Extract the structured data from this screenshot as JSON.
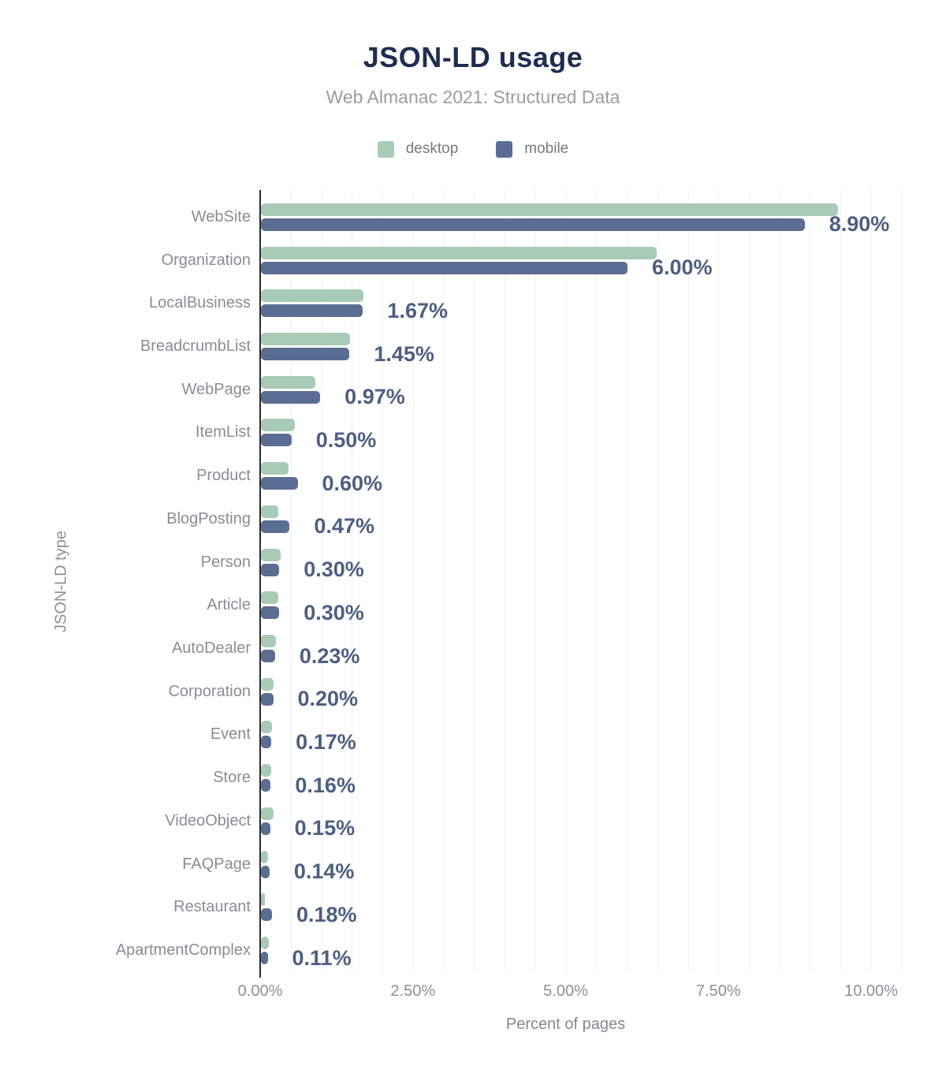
{
  "header": {
    "title": "JSON-LD usage",
    "subtitle": "Web Almanac 2021: Structured Data"
  },
  "legend": [
    {
      "label": "desktop",
      "color": "#a8cbb6"
    },
    {
      "label": "mobile",
      "color": "#5a6d92"
    }
  ],
  "colors": {
    "title": "#1d2e50",
    "subtitle": "#9b9da2",
    "desktop_bar": "#a8cbb6",
    "mobile_bar": "#5a6d92",
    "value_label": "#4d5f81",
    "category_label": "#878d96",
    "axis_line": "#2c2c2c",
    "gridline": "#edf2ee",
    "background": "#ffffff"
  },
  "chart_data": {
    "type": "bar",
    "orientation": "horizontal",
    "title": "JSON-LD usage",
    "subtitle": "Web Almanac 2021: Structured Data",
    "xlabel": "Percent of pages",
    "ylabel": "JSON-LD type",
    "xlim": [
      0,
      10.55
    ],
    "x_ticks": [
      "0.00%",
      "2.50%",
      "5.00%",
      "7.50%",
      "10.00%"
    ],
    "x_tick_values": [
      0,
      2.5,
      5,
      7.5,
      10
    ],
    "grid": true,
    "grid_interval": 0.5,
    "legend_position": "top",
    "categories": [
      "WebSite",
      "Organization",
      "LocalBusiness",
      "BreadcrumbList",
      "WebPage",
      "ItemList",
      "Product",
      "BlogPosting",
      "Person",
      "Article",
      "AutoDealer",
      "Corporation",
      "Event",
      "Store",
      "VideoObject",
      "FAQPage",
      "Restaurant",
      "ApartmentComplex"
    ],
    "series": [
      {
        "name": "desktop",
        "color": "#a8cbb6",
        "values": [
          9.45,
          6.48,
          1.68,
          1.46,
          0.89,
          0.55,
          0.45,
          0.28,
          0.32,
          0.29,
          0.25,
          0.2,
          0.18,
          0.17,
          0.2,
          0.12,
          0.06,
          0.13
        ]
      },
      {
        "name": "mobile",
        "color": "#5a6d92",
        "values": [
          8.9,
          6.0,
          1.67,
          1.45,
          0.97,
          0.5,
          0.6,
          0.47,
          0.3,
          0.3,
          0.23,
          0.2,
          0.17,
          0.16,
          0.15,
          0.14,
          0.18,
          0.11
        ]
      }
    ],
    "value_labels": [
      "8.90%",
      "6.00%",
      "1.67%",
      "1.45%",
      "0.97%",
      "0.50%",
      "0.60%",
      "0.47%",
      "0.30%",
      "0.30%",
      "0.23%",
      "0.20%",
      "0.17%",
      "0.16%",
      "0.15%",
      "0.14%",
      "0.18%",
      "0.11%"
    ],
    "value_labels_series": "mobile"
  }
}
